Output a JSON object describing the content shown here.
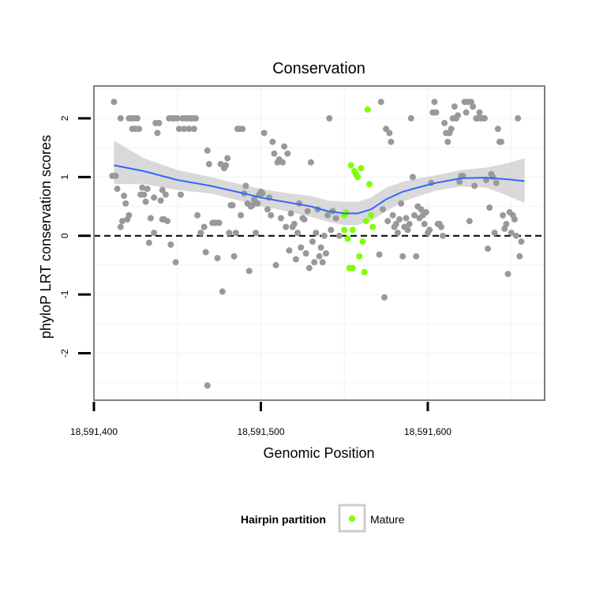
{
  "chart_data": {
    "type": "scatter",
    "title": "Conservation",
    "xlabel": "Genomic Position",
    "ylabel": "phyloP LRT conservation scores",
    "xlim": [
      18591400,
      18591670
    ],
    "ylim": [
      -2.8,
      2.55
    ],
    "x_ticks": [
      {
        "value": 18591400,
        "label": "18,591,400"
      },
      {
        "value": 18591500,
        "label": "18,591,500"
      },
      {
        "value": 18591600,
        "label": "18,591,600"
      }
    ],
    "y_ticks": [
      {
        "value": -2,
        "label": "-2"
      },
      {
        "value": -1,
        "label": "-1"
      },
      {
        "value": 0,
        "label": "0"
      },
      {
        "value": 1,
        "label": "1"
      },
      {
        "value": 2,
        "label": "2"
      }
    ],
    "reference_line": {
      "y": 0,
      "style": "dashed"
    },
    "grid": true,
    "colors": {
      "other": "#999999",
      "mature": "#7FFF00",
      "smooth": "#3366FF",
      "ribbon": "#CCCCCC",
      "panel_border": "#7f7f7f",
      "grid": "#f2f2f2"
    },
    "legend": {
      "title": "Hairpin partition",
      "placement": "bottom",
      "entries": [
        {
          "label": "Mature",
          "color": "#7FFF00"
        }
      ]
    },
    "series": [
      {
        "group": "other",
        "points": [
          [
            18591412,
            2.28
          ],
          [
            18591411,
            1.02
          ],
          [
            18591413,
            1.02
          ],
          [
            18591414,
            0.8
          ],
          [
            18591416,
            0.15
          ],
          [
            18591416,
            2.0
          ],
          [
            18591417,
            0.25
          ],
          [
            18591418,
            0.68
          ],
          [
            18591419,
            0.55
          ],
          [
            18591420,
            0.28
          ],
          [
            18591421,
            0.35
          ],
          [
            18591421,
            2.0
          ],
          [
            18591422,
            2.0
          ],
          [
            18591423,
            1.82
          ],
          [
            18591424,
            2.0
          ],
          [
            18591425,
            1.82
          ],
          [
            18591426,
            2.0
          ],
          [
            18591427,
            1.82
          ],
          [
            18591428,
            0.7
          ],
          [
            18591429,
            0.82
          ],
          [
            18591430,
            0.7
          ],
          [
            18591431,
            0.58
          ],
          [
            18591432,
            0.8
          ],
          [
            18591433,
            -0.12
          ],
          [
            18591434,
            0.3
          ],
          [
            18591436,
            0.05
          ],
          [
            18591436,
            0.65
          ],
          [
            18591437,
            1.92
          ],
          [
            18591438,
            1.75
          ],
          [
            18591439,
            1.92
          ],
          [
            18591440,
            0.6
          ],
          [
            18591441,
            0.78
          ],
          [
            18591441,
            0.28
          ],
          [
            18591442,
            0.28
          ],
          [
            18591443,
            0.7
          ],
          [
            18591444,
            0.25
          ],
          [
            18591445,
            2.0
          ],
          [
            18591446,
            -0.15
          ],
          [
            18591447,
            2.0
          ],
          [
            18591448,
            2.0
          ],
          [
            18591449,
            -0.45
          ],
          [
            18591450,
            2.0
          ],
          [
            18591451,
            1.82
          ],
          [
            18591452,
            0.7
          ],
          [
            18591453,
            2.0
          ],
          [
            18591454,
            1.82
          ],
          [
            18591455,
            2.0
          ],
          [
            18591456,
            2.0
          ],
          [
            18591457,
            1.82
          ],
          [
            18591458,
            2.0
          ],
          [
            18591459,
            2.0
          ],
          [
            18591460,
            1.82
          ],
          [
            18591461,
            2.0
          ],
          [
            18591462,
            0.35
          ],
          [
            18591464,
            0.05
          ],
          [
            18591466,
            0.15
          ],
          [
            18591467,
            -0.28
          ],
          [
            18591468,
            1.45
          ],
          [
            18591468,
            -2.55
          ],
          [
            18591469,
            1.22
          ],
          [
            18591471,
            0.22
          ],
          [
            18591472,
            0.22
          ],
          [
            18591473,
            0.22
          ],
          [
            18591474,
            -0.38
          ],
          [
            18591475,
            0.22
          ],
          [
            18591476,
            1.22
          ],
          [
            18591477,
            -0.95
          ],
          [
            18591478,
            1.15
          ],
          [
            18591479,
            1.2
          ],
          [
            18591480,
            1.32
          ],
          [
            18591481,
            0.05
          ],
          [
            18591482,
            0.52
          ],
          [
            18591483,
            0.52
          ],
          [
            18591484,
            -0.35
          ],
          [
            18591485,
            0.05
          ],
          [
            18591486,
            1.82
          ],
          [
            18591487,
            1.82
          ],
          [
            18591488,
            0.35
          ],
          [
            18591489,
            1.82
          ],
          [
            18591490,
            0.72
          ],
          [
            18591491,
            0.85
          ],
          [
            18591492,
            0.55
          ],
          [
            18591493,
            -0.6
          ],
          [
            18591494,
            0.5
          ],
          [
            18591495,
            0.52
          ],
          [
            18591496,
            0.62
          ],
          [
            18591497,
            0.05
          ],
          [
            18591498,
            0.55
          ],
          [
            18591499,
            0.7
          ],
          [
            18591500,
            0.75
          ],
          [
            18591501,
            0.72
          ],
          [
            18591502,
            1.75
          ],
          [
            18591504,
            0.45
          ],
          [
            18591505,
            0.65
          ],
          [
            18591506,
            0.35
          ],
          [
            18591507,
            1.6
          ],
          [
            18591508,
            1.4
          ],
          [
            18591509,
            -0.5
          ],
          [
            18591510,
            1.25
          ],
          [
            18591511,
            1.3
          ],
          [
            18591512,
            0.3
          ],
          [
            18591513,
            1.25
          ],
          [
            18591514,
            1.52
          ],
          [
            18591515,
            0.15
          ],
          [
            18591516,
            1.4
          ],
          [
            18591517,
            -0.25
          ],
          [
            18591518,
            0.38
          ],
          [
            18591519,
            0.15
          ],
          [
            18591520,
            0.2
          ],
          [
            18591521,
            -0.4
          ],
          [
            18591522,
            0.05
          ],
          [
            18591523,
            0.55
          ],
          [
            18591524,
            -0.2
          ],
          [
            18591525,
            0.3
          ],
          [
            18591526,
            0.28
          ],
          [
            18591527,
            -0.3
          ],
          [
            18591528,
            0.42
          ],
          [
            18591529,
            -0.55
          ],
          [
            18591530,
            1.25
          ],
          [
            18591531,
            -0.1
          ],
          [
            18591532,
            -0.45
          ],
          [
            18591533,
            0.05
          ],
          [
            18591534,
            0.45
          ],
          [
            18591535,
            -0.35
          ],
          [
            18591536,
            -0.2
          ],
          [
            18591537,
            -0.45
          ],
          [
            18591538,
            0.0
          ],
          [
            18591539,
            -0.3
          ],
          [
            18591540,
            0.35
          ],
          [
            18591541,
            2.0
          ],
          [
            18591542,
            0.1
          ],
          [
            18591543,
            0.42
          ],
          [
            18591545,
            0.3
          ],
          [
            18591547,
            0.0
          ],
          [
            18591572,
            2.28
          ],
          [
            18591571,
            -0.32
          ],
          [
            18591573,
            0.45
          ],
          [
            18591574,
            -1.05
          ],
          [
            18591575,
            1.82
          ],
          [
            18591576,
            0.25
          ],
          [
            18591577,
            1.75
          ],
          [
            18591578,
            1.6
          ],
          [
            18591579,
            0.35
          ],
          [
            18591580,
            0.15
          ],
          [
            18591581,
            0.2
          ],
          [
            18591582,
            0.05
          ],
          [
            18591583,
            0.28
          ],
          [
            18591584,
            0.55
          ],
          [
            18591585,
            -0.35
          ],
          [
            18591586,
            0.15
          ],
          [
            18591587,
            0.3
          ],
          [
            18591588,
            0.1
          ],
          [
            18591589,
            0.2
          ],
          [
            18591590,
            2.0
          ],
          [
            18591591,
            1.0
          ],
          [
            18591592,
            0.35
          ],
          [
            18591593,
            -0.35
          ],
          [
            18591594,
            0.5
          ],
          [
            18591595,
            0.3
          ],
          [
            18591596,
            0.45
          ],
          [
            18591597,
            0.35
          ],
          [
            18591598,
            0.2
          ],
          [
            18591599,
            0.4
          ],
          [
            18591600,
            0.05
          ],
          [
            18591601,
            0.1
          ],
          [
            18591602,
            0.9
          ],
          [
            18591603,
            2.1
          ],
          [
            18591604,
            2.28
          ],
          [
            18591605,
            2.1
          ],
          [
            18591606,
            0.2
          ],
          [
            18591607,
            0.2
          ],
          [
            18591608,
            0.15
          ],
          [
            18591609,
            0.0
          ],
          [
            18591610,
            1.92
          ],
          [
            18591611,
            1.75
          ],
          [
            18591612,
            1.6
          ],
          [
            18591613,
            1.75
          ],
          [
            18591614,
            1.82
          ],
          [
            18591615,
            2.0
          ],
          [
            18591616,
            2.2
          ],
          [
            18591617,
            2.0
          ],
          [
            18591618,
            2.05
          ],
          [
            18591619,
            0.92
          ],
          [
            18591620,
            1.02
          ],
          [
            18591621,
            1.02
          ],
          [
            18591622,
            2.28
          ],
          [
            18591623,
            2.1
          ],
          [
            18591624,
            2.28
          ],
          [
            18591625,
            0.25
          ],
          [
            18591626,
            2.28
          ],
          [
            18591627,
            2.2
          ],
          [
            18591628,
            0.85
          ],
          [
            18591629,
            2.0
          ],
          [
            18591630,
            2.0
          ],
          [
            18591631,
            2.1
          ],
          [
            18591632,
            2.0
          ],
          [
            18591633,
            2.0
          ],
          [
            18591634,
            2.0
          ],
          [
            18591635,
            0.95
          ],
          [
            18591636,
            -0.22
          ],
          [
            18591637,
            0.48
          ],
          [
            18591638,
            1.05
          ],
          [
            18591639,
            1.0
          ],
          [
            18591640,
            0.05
          ],
          [
            18591641,
            0.9
          ],
          [
            18591642,
            1.82
          ],
          [
            18591643,
            1.6
          ],
          [
            18591644,
            1.6
          ],
          [
            18591645,
            0.35
          ],
          [
            18591646,
            0.12
          ],
          [
            18591647,
            0.2
          ],
          [
            18591648,
            -0.65
          ],
          [
            18591649,
            0.4
          ],
          [
            18591650,
            0.05
          ],
          [
            18591651,
            0.35
          ],
          [
            18591652,
            0.28
          ],
          [
            18591653,
            0.0
          ],
          [
            18591654,
            2.0
          ],
          [
            18591655,
            -0.35
          ],
          [
            18591656,
            -0.1
          ]
        ]
      },
      {
        "group": "mature",
        "name": "Mature",
        "points": [
          [
            18591550,
            0.35
          ],
          [
            18591550,
            0.1
          ],
          [
            18591551,
            0.4
          ],
          [
            18591552,
            -0.05
          ],
          [
            18591553,
            -0.55
          ],
          [
            18591554,
            1.2
          ],
          [
            18591555,
            -0.55
          ],
          [
            18591555,
            0.1
          ],
          [
            18591556,
            1.1
          ],
          [
            18591557,
            1.05
          ],
          [
            18591558,
            1.0
          ],
          [
            18591559,
            -0.35
          ],
          [
            18591560,
            1.15
          ],
          [
            18591561,
            -0.1
          ],
          [
            18591562,
            -0.62
          ],
          [
            18591563,
            0.25
          ],
          [
            18591564,
            2.15
          ],
          [
            18591565,
            0.88
          ],
          [
            18591566,
            0.35
          ],
          [
            18591567,
            0.15
          ]
        ]
      }
    ],
    "smooth_curve": [
      [
        18591412,
        1.2
      ],
      [
        18591430,
        1.1
      ],
      [
        18591450,
        0.95
      ],
      [
        18591470,
        0.85
      ],
      [
        18591490,
        0.72
      ],
      [
        18591500,
        0.65
      ],
      [
        18591510,
        0.6
      ],
      [
        18591520,
        0.55
      ],
      [
        18591530,
        0.5
      ],
      [
        18591540,
        0.42
      ],
      [
        18591550,
        0.38
      ],
      [
        18591558,
        0.38
      ],
      [
        18591566,
        0.45
      ],
      [
        18591575,
        0.62
      ],
      [
        18591585,
        0.75
      ],
      [
        18591595,
        0.83
      ],
      [
        18591605,
        0.9
      ],
      [
        18591620,
        0.98
      ],
      [
        18591635,
        0.99
      ],
      [
        18591648,
        0.96
      ],
      [
        18591658,
        0.93
      ]
    ],
    "smooth_band": [
      [
        18591412,
        0.88,
        1.62
      ],
      [
        18591430,
        0.88,
        1.32
      ],
      [
        18591450,
        0.78,
        1.12
      ],
      [
        18591470,
        0.72,
        1.0
      ],
      [
        18591490,
        0.58,
        0.86
      ],
      [
        18591500,
        0.5,
        0.8
      ],
      [
        18591510,
        0.45,
        0.75
      ],
      [
        18591520,
        0.39,
        0.71
      ],
      [
        18591530,
        0.32,
        0.68
      ],
      [
        18591540,
        0.24,
        0.6
      ],
      [
        18591550,
        0.18,
        0.58
      ],
      [
        18591558,
        0.18,
        0.58
      ],
      [
        18591566,
        0.25,
        0.65
      ],
      [
        18591575,
        0.42,
        0.82
      ],
      [
        18591585,
        0.58,
        0.92
      ],
      [
        18591595,
        0.68,
        0.98
      ],
      [
        18591605,
        0.77,
        1.03
      ],
      [
        18591620,
        0.84,
        1.12
      ],
      [
        18591635,
        0.82,
        1.16
      ],
      [
        18591648,
        0.68,
        1.24
      ],
      [
        18591658,
        0.56,
        1.32
      ]
    ]
  }
}
